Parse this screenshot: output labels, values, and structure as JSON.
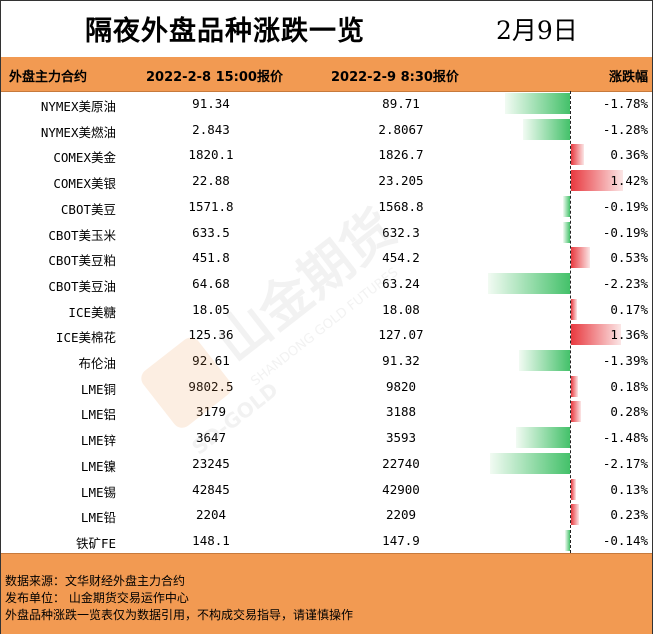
{
  "title": "隔夜外盘品种涨跌一览",
  "date": "2月9日",
  "header": {
    "name": "外盘主力合约",
    "d1": "2022-2-8 15:00报价",
    "d2": "2022-2-9 8:30报价",
    "change": "涨跌幅"
  },
  "colors": {
    "header_bg": "#f29a52",
    "up": "#e8393f",
    "down": "#44c16a"
  },
  "chart_data": {
    "type": "table",
    "columns": [
      "外盘主力合约",
      "2022-2-8 15:00报价",
      "2022-2-9 8:30报价",
      "涨跌幅"
    ],
    "rows": [
      {
        "name": "NYMEX美原油",
        "v1": "91.34",
        "v2": "89.71",
        "pct": -1.78,
        "pct_text": "-1.78%"
      },
      {
        "name": "NYMEX美燃油",
        "v1": "2.843",
        "v2": "2.8067",
        "pct": -1.28,
        "pct_text": "-1.28%"
      },
      {
        "name": "COMEX美金",
        "v1": "1820.1",
        "v2": "1826.7",
        "pct": 0.36,
        "pct_text": "0.36%"
      },
      {
        "name": "COMEX美银",
        "v1": "22.88",
        "v2": "23.205",
        "pct": 1.42,
        "pct_text": "1.42%"
      },
      {
        "name": "CBOT美豆",
        "v1": "1571.8",
        "v2": "1568.8",
        "pct": -0.19,
        "pct_text": "-0.19%"
      },
      {
        "name": "CBOT美玉米",
        "v1": "633.5",
        "v2": "632.3",
        "pct": -0.19,
        "pct_text": "-0.19%"
      },
      {
        "name": "CBOT美豆粕",
        "v1": "451.8",
        "v2": "454.2",
        "pct": 0.53,
        "pct_text": "0.53%"
      },
      {
        "name": "CBOT美豆油",
        "v1": "64.68",
        "v2": "63.24",
        "pct": -2.23,
        "pct_text": "-2.23%"
      },
      {
        "name": "ICE美糖",
        "v1": "18.05",
        "v2": "18.08",
        "pct": 0.17,
        "pct_text": "0.17%"
      },
      {
        "name": "ICE美棉花",
        "v1": "125.36",
        "v2": "127.07",
        "pct": 1.36,
        "pct_text": "1.36%"
      },
      {
        "name": "布伦油",
        "v1": "92.61",
        "v2": "91.32",
        "pct": -1.39,
        "pct_text": "-1.39%"
      },
      {
        "name": "LME铜",
        "v1": "9802.5",
        "v2": "9820",
        "pct": 0.18,
        "pct_text": "0.18%"
      },
      {
        "name": "LME铝",
        "v1": "3179",
        "v2": "3188",
        "pct": 0.28,
        "pct_text": "0.28%"
      },
      {
        "name": "LME锌",
        "v1": "3647",
        "v2": "3593",
        "pct": -1.48,
        "pct_text": "-1.48%"
      },
      {
        "name": "LME镍",
        "v1": "23245",
        "v2": "22740",
        "pct": -2.17,
        "pct_text": "-2.17%"
      },
      {
        "name": "LME锡",
        "v1": "42845",
        "v2": "42900",
        "pct": 0.13,
        "pct_text": "0.13%"
      },
      {
        "name": "LME铅",
        "v1": "2204",
        "v2": "2209",
        "pct": 0.23,
        "pct_text": "0.23%"
      },
      {
        "name": "铁矿FE",
        "v1": "148.1",
        "v2": "147.9",
        "pct": -0.14,
        "pct_text": "-0.14%"
      }
    ]
  },
  "footer": {
    "line1": "数据来源：文华财经外盘主力合约",
    "line2": "发布单位：  山金期货交易运作中心",
    "line3": "外盘品种涨跌一览表仅为数据引用，不构成交易指导，请谨慎操作"
  },
  "watermark": {
    "brand_cn": "山金期货",
    "brand_en": "SHANDONG GOLD FUTURES",
    "logo_text": "SD-GOLD"
  }
}
